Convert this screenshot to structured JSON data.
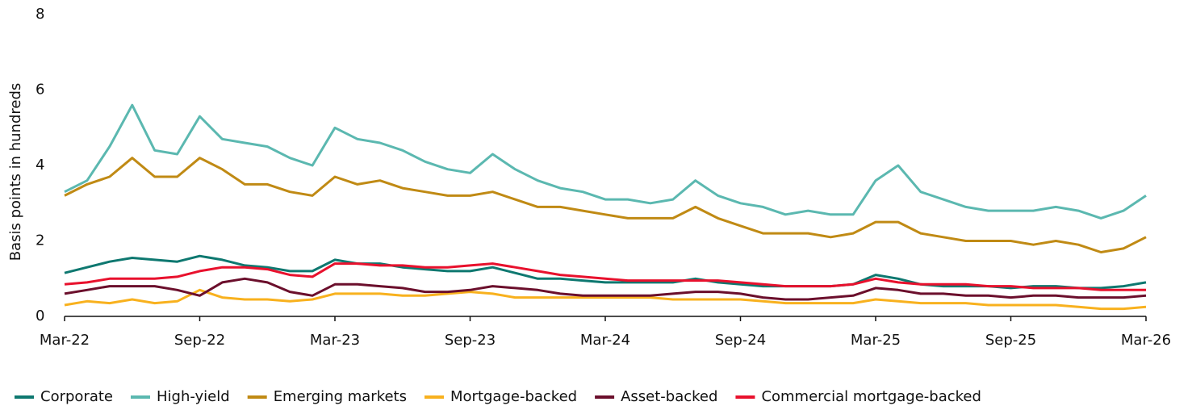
{
  "chart_data": {
    "type": "line",
    "ylabel": "Basis points in hundreds",
    "x": [
      "Mar-22",
      "Apr-22",
      "May-22",
      "Jun-22",
      "Jul-22",
      "Aug-22",
      "Sep-22",
      "Oct-22",
      "Nov-22",
      "Dec-22",
      "Jan-23",
      "Feb-23",
      "Mar-23",
      "Apr-23",
      "May-23",
      "Jun-23",
      "Jul-23",
      "Aug-23",
      "Sep-23",
      "Oct-23",
      "Nov-23",
      "Dec-23",
      "Jan-24",
      "Feb-24",
      "Mar-24",
      "Apr-24",
      "May-24",
      "Jun-24",
      "Jul-24",
      "Aug-24",
      "Sep-24",
      "Oct-24",
      "Nov-24",
      "Dec-24",
      "Jan-25",
      "Feb-25",
      "Mar-25",
      "Apr-25",
      "May-25",
      "Jun-25",
      "Jul-25",
      "Aug-25",
      "Sep-25",
      "Oct-25",
      "Nov-25",
      "Dec-25",
      "Jan-26",
      "Feb-26",
      "Mar-26"
    ],
    "xticks": [
      "Mar-22",
      "Sep-22",
      "Mar-23",
      "Sep-23",
      "Mar-24",
      "Sep-24",
      "Mar-25",
      "Sep-25",
      "Mar-26"
    ],
    "ylim": [
      0,
      8
    ],
    "yticks": [
      0,
      2,
      4,
      6,
      8
    ],
    "grid": false,
    "legend": "bottom",
    "series": [
      {
        "name": "Corporate",
        "color": "#0e7870",
        "values": [
          1.15,
          1.3,
          1.45,
          1.55,
          1.5,
          1.45,
          1.6,
          1.5,
          1.35,
          1.3,
          1.2,
          1.2,
          1.5,
          1.4,
          1.4,
          1.3,
          1.25,
          1.2,
          1.2,
          1.3,
          1.15,
          1.0,
          1.0,
          0.95,
          0.9,
          0.9,
          0.9,
          0.9,
          1.0,
          0.9,
          0.85,
          0.8,
          0.8,
          0.8,
          0.8,
          0.85,
          1.1,
          1.0,
          0.85,
          0.8,
          0.8,
          0.8,
          0.75,
          0.8,
          0.8,
          0.75,
          0.75,
          0.8,
          0.9
        ]
      },
      {
        "name": "High-yield",
        "color": "#5bb8b0",
        "values": [
          3.3,
          3.6,
          4.5,
          5.6,
          4.4,
          4.3,
          5.3,
          4.7,
          4.6,
          4.5,
          4.2,
          4.0,
          5.0,
          4.7,
          4.6,
          4.4,
          4.1,
          3.9,
          3.8,
          4.3,
          3.9,
          3.6,
          3.4,
          3.3,
          3.1,
          3.1,
          3.0,
          3.1,
          3.6,
          3.2,
          3.0,
          2.9,
          2.7,
          2.8,
          2.7,
          2.7,
          3.6,
          4.0,
          3.3,
          3.1,
          2.9,
          2.8,
          2.8,
          2.8,
          2.9,
          2.8,
          2.6,
          2.8,
          3.2
        ]
      },
      {
        "name": "Emerging markets",
        "color": "#c08a14",
        "values": [
          3.2,
          3.5,
          3.7,
          4.2,
          3.7,
          3.7,
          4.2,
          3.9,
          3.5,
          3.5,
          3.3,
          3.2,
          3.7,
          3.5,
          3.6,
          3.4,
          3.3,
          3.2,
          3.2,
          3.3,
          3.1,
          2.9,
          2.9,
          2.8,
          2.7,
          2.6,
          2.6,
          2.6,
          2.9,
          2.6,
          2.4,
          2.2,
          2.2,
          2.2,
          2.1,
          2.2,
          2.5,
          2.5,
          2.2,
          2.1,
          2.0,
          2.0,
          2.0,
          1.9,
          2.0,
          1.9,
          1.7,
          1.8,
          2.1
        ]
      },
      {
        "name": "Mortgage-backed",
        "color": "#f8b11e",
        "values": [
          0.3,
          0.4,
          0.35,
          0.45,
          0.35,
          0.4,
          0.7,
          0.5,
          0.45,
          0.45,
          0.4,
          0.45,
          0.6,
          0.6,
          0.6,
          0.55,
          0.55,
          0.6,
          0.65,
          0.6,
          0.5,
          0.5,
          0.5,
          0.5,
          0.5,
          0.5,
          0.5,
          0.45,
          0.45,
          0.45,
          0.45,
          0.4,
          0.35,
          0.35,
          0.35,
          0.35,
          0.45,
          0.4,
          0.35,
          0.35,
          0.35,
          0.3,
          0.3,
          0.3,
          0.3,
          0.25,
          0.2,
          0.2,
          0.25
        ]
      },
      {
        "name": "Asset-backed",
        "color": "#6b0f2c",
        "values": [
          0.6,
          0.7,
          0.8,
          0.8,
          0.8,
          0.7,
          0.55,
          0.9,
          1.0,
          0.9,
          0.65,
          0.55,
          0.85,
          0.85,
          0.8,
          0.75,
          0.65,
          0.65,
          0.7,
          0.8,
          0.75,
          0.7,
          0.6,
          0.55,
          0.55,
          0.55,
          0.55,
          0.6,
          0.65,
          0.65,
          0.6,
          0.5,
          0.45,
          0.45,
          0.5,
          0.55,
          0.75,
          0.7,
          0.6,
          0.6,
          0.55,
          0.55,
          0.5,
          0.55,
          0.55,
          0.5,
          0.5,
          0.5,
          0.55
        ]
      },
      {
        "name": "Commercial mortgage-backed",
        "color": "#e8112d",
        "values": [
          0.85,
          0.9,
          1.0,
          1.0,
          1.0,
          1.05,
          1.2,
          1.3,
          1.3,
          1.25,
          1.1,
          1.05,
          1.4,
          1.4,
          1.35,
          1.35,
          1.3,
          1.3,
          1.35,
          1.4,
          1.3,
          1.2,
          1.1,
          1.05,
          1.0,
          0.95,
          0.95,
          0.95,
          0.95,
          0.95,
          0.9,
          0.85,
          0.8,
          0.8,
          0.8,
          0.85,
          1.0,
          0.9,
          0.85,
          0.85,
          0.85,
          0.8,
          0.8,
          0.75,
          0.75,
          0.75,
          0.7,
          0.7,
          0.7
        ]
      }
    ]
  }
}
